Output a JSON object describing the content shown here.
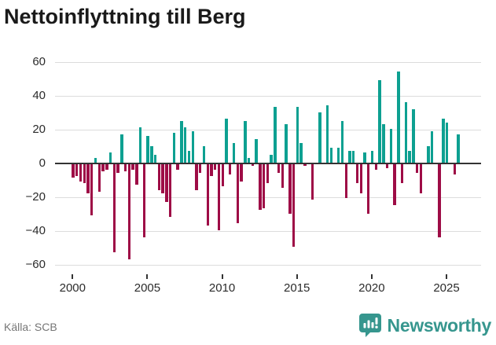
{
  "title": "Nettoinflyttning till Berg",
  "source": "Källa: SCB",
  "branding": {
    "name": "Newsworthy",
    "logo_icon": "bar-chart-pin-icon"
  },
  "colors": {
    "positive": "#0da091",
    "negative": "#9e0c46",
    "grid": "#dcdcdc",
    "axis": "#333333",
    "title": "#1a1a1a",
    "tick_label": "#2b2b2b",
    "source": "#767676",
    "brand": "#36968e"
  },
  "chart_data": {
    "type": "bar",
    "title": "Nettoinflyttning till Berg",
    "xlabel": "",
    "ylabel": "",
    "frequency": "quarterly",
    "start_period": "2000-Q1",
    "end_period": "2025-Q4",
    "x_tick_labels": [
      "2000",
      "2005",
      "2010",
      "2015",
      "2020",
      "2025"
    ],
    "y_ticks": [
      60,
      40,
      20,
      0,
      -20,
      -40,
      -60
    ],
    "ylim": [
      -66,
      66
    ],
    "grid": "horizontal",
    "legend": "none",
    "series": [
      {
        "name": "Nettoinflyttning",
        "values": [
          -8,
          -7,
          -10,
          -11,
          -17,
          -30,
          3,
          -16,
          -4,
          -3,
          6,
          -52,
          -5,
          17,
          -4,
          -56,
          -3,
          -12,
          21,
          -43,
          16,
          10,
          5,
          -15,
          -17,
          -22,
          -31,
          18,
          -3,
          25,
          21,
          7,
          19,
          -15,
          -5,
          10,
          -36,
          -7,
          -3,
          -39,
          -13,
          26,
          -6,
          12,
          -35,
          -10,
          25,
          3,
          -1,
          14,
          -27,
          -26,
          -11,
          5,
          33,
          -5,
          -14,
          23,
          -29,
          -49,
          33,
          12,
          -1,
          0,
          -21,
          0,
          30,
          0,
          34,
          9,
          0,
          9,
          25,
          -20,
          7,
          7,
          -11,
          -17,
          6,
          -29,
          7,
          -3,
          49,
          23,
          -2,
          20,
          -24,
          54,
          -11,
          36,
          7,
          32,
          -5,
          -17,
          0,
          10,
          19,
          0,
          -43,
          26,
          24,
          0,
          -6,
          17
        ]
      }
    ]
  }
}
